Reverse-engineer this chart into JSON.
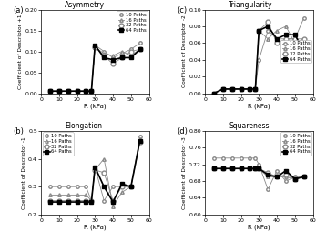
{
  "R": [
    5,
    10,
    15,
    20,
    25,
    28,
    30,
    35,
    40,
    45,
    50,
    55
  ],
  "asym_10": [
    0.005,
    0.005,
    0.005,
    0.005,
    0.005,
    0.005,
    0.115,
    0.1,
    0.085,
    0.095,
    0.105,
    0.12
  ],
  "asym_16": [
    0.005,
    0.005,
    0.005,
    0.005,
    0.005,
    0.005,
    0.11,
    0.095,
    0.09,
    0.1,
    0.09,
    0.105
  ],
  "asym_32": [
    0.005,
    0.005,
    0.005,
    0.005,
    0.005,
    0.005,
    0.11,
    0.09,
    0.07,
    0.085,
    0.1,
    0.105
  ],
  "asym_64": [
    0.005,
    0.005,
    0.005,
    0.005,
    0.005,
    0.005,
    0.115,
    0.085,
    0.08,
    0.085,
    0.085,
    0.105
  ],
  "tri_10": [
    0.0,
    0.005,
    0.005,
    0.005,
    0.005,
    0.005,
    0.04,
    0.075,
    0.065,
    0.065,
    0.065,
    0.09
  ],
  "tri_16": [
    0.0,
    0.005,
    0.005,
    0.005,
    0.005,
    0.005,
    0.075,
    0.065,
    0.075,
    0.08,
    0.06,
    0.065
  ],
  "tri_32": [
    0.0,
    0.005,
    0.005,
    0.005,
    0.005,
    0.005,
    0.075,
    0.085,
    0.06,
    0.065,
    0.065,
    0.065
  ],
  "tri_64": [
    0.0,
    0.005,
    0.005,
    0.005,
    0.005,
    0.005,
    0.075,
    0.08,
    0.065,
    0.07,
    0.07,
    0.05
  ],
  "elo_10": [
    0.3,
    0.3,
    0.3,
    0.3,
    0.3,
    0.25,
    0.37,
    0.25,
    0.3,
    0.3,
    0.3,
    0.48
  ],
  "elo_16": [
    0.27,
    0.27,
    0.27,
    0.27,
    0.27,
    0.25,
    0.36,
    0.4,
    0.23,
    0.28,
    0.3,
    0.47
  ],
  "elo_32": [
    0.25,
    0.25,
    0.25,
    0.25,
    0.25,
    0.25,
    0.36,
    0.35,
    0.25,
    0.3,
    0.3,
    0.46
  ],
  "elo_64": [
    0.245,
    0.245,
    0.245,
    0.245,
    0.245,
    0.245,
    0.37,
    0.3,
    0.245,
    0.31,
    0.3,
    0.465
  ],
  "squ_10": [
    0.735,
    0.735,
    0.735,
    0.735,
    0.735,
    0.735,
    0.72,
    0.66,
    0.705,
    0.68,
    0.69,
    0.69
  ],
  "squ_16": [
    0.71,
    0.71,
    0.71,
    0.71,
    0.71,
    0.71,
    0.71,
    0.69,
    0.69,
    0.69,
    0.685,
    0.69
  ],
  "squ_32": [
    0.71,
    0.71,
    0.71,
    0.71,
    0.71,
    0.71,
    0.71,
    0.7,
    0.69,
    0.695,
    0.685,
    0.69
  ],
  "squ_64": [
    0.71,
    0.71,
    0.71,
    0.71,
    0.71,
    0.71,
    0.71,
    0.695,
    0.69,
    0.705,
    0.685,
    0.69
  ],
  "title_a": "Asymmetry",
  "title_b": "Elongation",
  "title_c": "Triangularity",
  "title_d": "Squareness",
  "ylabel_a": "Coefficient of Descriptor +1",
  "ylabel_b": "Coefficient of Descriptor -1",
  "ylabel_c": "Coefficient of Descriptor -2",
  "ylabel_d": "Coefficient of Descriptor -3",
  "xlabel": "R (kPa)",
  "ylim_a": [
    0.0,
    0.2
  ],
  "ylim_b": [
    0.2,
    0.5
  ],
  "ylim_c": [
    0.0,
    0.1
  ],
  "ylim_d": [
    0.6,
    0.8
  ],
  "yticks_a": [
    0.0,
    0.05,
    0.1,
    0.15,
    0.2
  ],
  "yticks_b": [
    0.2,
    0.3,
    0.4,
    0.5
  ],
  "yticks_c": [
    0.0,
    0.02,
    0.04,
    0.06,
    0.08,
    0.1
  ],
  "yticks_d": [
    0.6,
    0.64,
    0.68,
    0.72,
    0.76,
    0.8
  ],
  "xlim": [
    0,
    60
  ],
  "xticks": [
    0,
    10,
    20,
    30,
    40,
    50,
    60
  ],
  "legend_labels": [
    "10 Paths",
    "16 Paths",
    "32 Paths",
    "64 Paths"
  ],
  "line_color": "#888888"
}
